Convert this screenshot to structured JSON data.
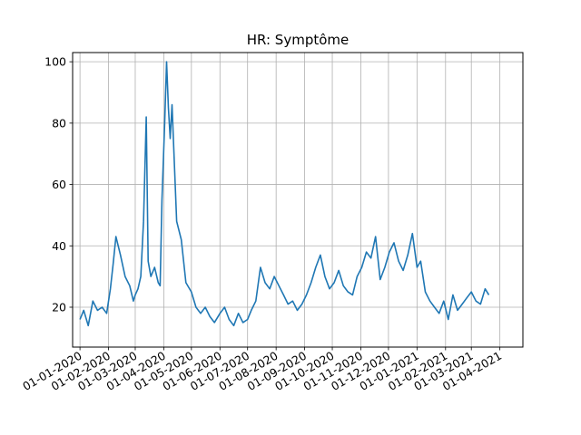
{
  "chart_data": {
    "type": "line",
    "title": "HR: Symptôme",
    "xlabel": "",
    "ylabel": "",
    "grid": true,
    "xlim": [
      "2019-12-24",
      "2021-04-26"
    ],
    "ylim": [
      7,
      103
    ],
    "yticks": [
      20,
      40,
      60,
      80,
      100
    ],
    "xticks": [
      "01-01-2020",
      "01-02-2020",
      "01-03-2020",
      "01-04-2020",
      "01-05-2020",
      "01-06-2020",
      "01-07-2020",
      "01-08-2020",
      "01-09-2020",
      "01-10-2020",
      "01-11-2020",
      "01-12-2020",
      "01-01-2021",
      "01-02-2021",
      "01-03-2021",
      "01-04-2021"
    ],
    "series": [
      {
        "color": "#1f77b4",
        "x": [
          "2020-01-01",
          "2020-01-05",
          "2020-01-10",
          "2020-01-15",
          "2020-01-20",
          "2020-01-25",
          "2020-01-30",
          "2020-02-03",
          "2020-02-06",
          "2020-02-09",
          "2020-02-14",
          "2020-02-19",
          "2020-02-24",
          "2020-02-28",
          "2020-03-01",
          "2020-03-04",
          "2020-03-07",
          "2020-03-10",
          "2020-03-13",
          "2020-03-15",
          "2020-03-18",
          "2020-03-22",
          "2020-03-26",
          "2020-03-28",
          "2020-03-30",
          "2020-04-02",
          "2020-04-04",
          "2020-04-06",
          "2020-04-08",
          "2020-04-10",
          "2020-04-15",
          "2020-04-20",
          "2020-04-25",
          "2020-05-01",
          "2020-05-06",
          "2020-05-11",
          "2020-05-16",
          "2020-05-21",
          "2020-05-26",
          "2020-06-01",
          "2020-06-06",
          "2020-06-11",
          "2020-06-16",
          "2020-06-21",
          "2020-06-26",
          "2020-07-01",
          "2020-07-05",
          "2020-07-10",
          "2020-07-15",
          "2020-07-20",
          "2020-07-25",
          "2020-07-30",
          "2020-08-04",
          "2020-08-09",
          "2020-08-14",
          "2020-08-19",
          "2020-08-24",
          "2020-08-29",
          "2020-09-03",
          "2020-09-08",
          "2020-09-13",
          "2020-09-18",
          "2020-09-23",
          "2020-09-28",
          "2020-10-03",
          "2020-10-08",
          "2020-10-13",
          "2020-10-18",
          "2020-10-23",
          "2020-10-28",
          "2020-11-02",
          "2020-11-07",
          "2020-11-12",
          "2020-11-17",
          "2020-11-22",
          "2020-11-27",
          "2020-12-02",
          "2020-12-07",
          "2020-12-12",
          "2020-12-17",
          "2020-12-22",
          "2020-12-27",
          "2021-01-01",
          "2021-01-05",
          "2021-01-10",
          "2021-01-15",
          "2021-01-20",
          "2021-01-25",
          "2021-01-30",
          "2021-02-04",
          "2021-02-09",
          "2021-02-14",
          "2021-02-19",
          "2021-02-24",
          "2021-03-01",
          "2021-03-06",
          "2021-03-11",
          "2021-03-16",
          "2021-03-20"
        ],
        "y": [
          16,
          19,
          14,
          22,
          19,
          20,
          18,
          26,
          34,
          43,
          37,
          30,
          27,
          22,
          24,
          26,
          30,
          48,
          82,
          35,
          30,
          33,
          28,
          27,
          55,
          80,
          100,
          85,
          75,
          86,
          48,
          42,
          28,
          25,
          20,
          18,
          20,
          17,
          15,
          18,
          20,
          16,
          14,
          18,
          15,
          16,
          19,
          22,
          33,
          28,
          26,
          30,
          27,
          24,
          21,
          22,
          19,
          21,
          24,
          28,
          33,
          37,
          30,
          26,
          28,
          32,
          27,
          25,
          24,
          30,
          33,
          38,
          36,
          43,
          29,
          33,
          38,
          41,
          35,
          32,
          37,
          44,
          33,
          35,
          25,
          22,
          20,
          18,
          22,
          16,
          24,
          19,
          21,
          23,
          25,
          22,
          21,
          26,
          24
        ]
      }
    ]
  }
}
